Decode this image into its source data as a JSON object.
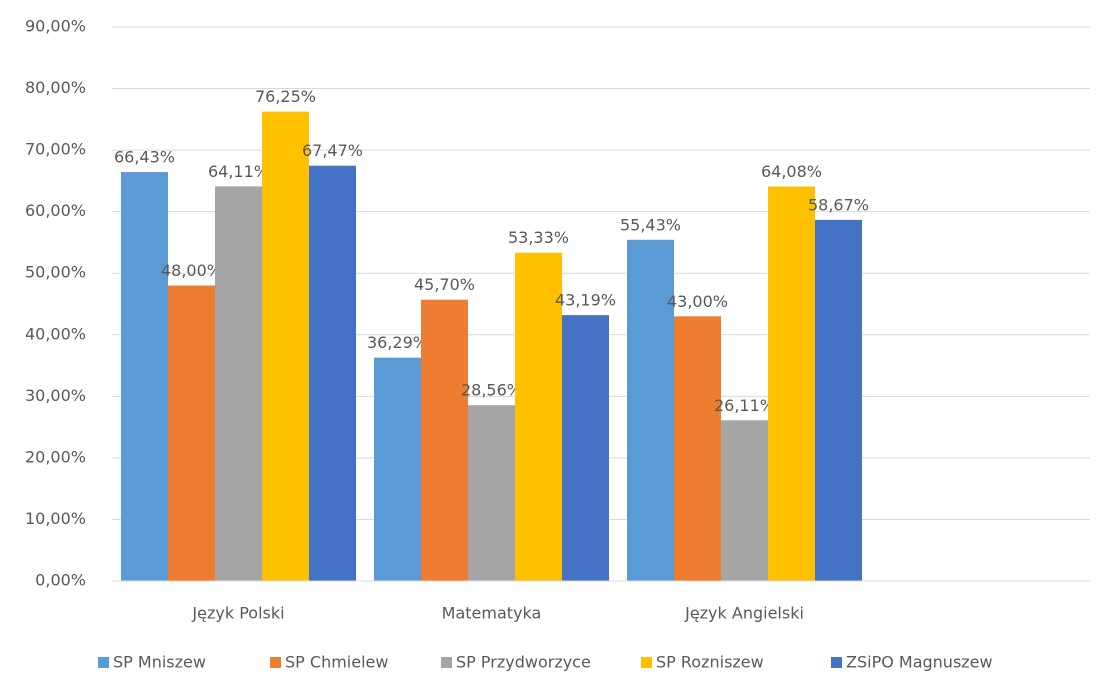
{
  "chart_data": {
    "type": "bar",
    "categories": [
      "Język Polski",
      "Matematyka",
      "Język Angielski"
    ],
    "series": [
      {
        "name": "SP Mniszew",
        "color": "#5b9bd5",
        "values": [
          66.43,
          36.29,
          55.43
        ],
        "value_labels": [
          "66,43%",
          "36,29%",
          "55,43%"
        ]
      },
      {
        "name": "SP Chmielew",
        "color": "#ed7d31",
        "values": [
          48.0,
          45.7,
          43.0
        ],
        "value_labels": [
          "48,00%",
          "45,70%",
          "43,00%"
        ]
      },
      {
        "name": "SP Przydworzyce",
        "color": "#a5a5a5",
        "values": [
          64.11,
          28.56,
          26.11
        ],
        "value_labels": [
          "64,11%",
          "28,56%",
          "26,11%"
        ]
      },
      {
        "name": "SP Rozniszew",
        "color": "#ffc000",
        "values": [
          76.25,
          53.33,
          64.08
        ],
        "value_labels": [
          "76,25%",
          "53,33%",
          "64,08%"
        ]
      },
      {
        "name": "ZSiPO Magnuszew",
        "color": "#4472c4",
        "values": [
          67.47,
          43.19,
          58.67
        ],
        "value_labels": [
          "67,47%",
          "43,19%",
          "58,67%"
        ]
      }
    ],
    "ylim": [
      0,
      90
    ],
    "yticks": [
      {
        "value": 0,
        "label": "0,00%"
      },
      {
        "value": 10,
        "label": "10,00%"
      },
      {
        "value": 20,
        "label": "20,00%"
      },
      {
        "value": 30,
        "label": "30,00%"
      },
      {
        "value": 40,
        "label": "40,00%"
      },
      {
        "value": 50,
        "label": "50,00%"
      },
      {
        "value": 60,
        "label": "60,00%"
      },
      {
        "value": 70,
        "label": "70,00%"
      },
      {
        "value": 80,
        "label": "80,00%"
      },
      {
        "value": 90,
        "label": "90,00%"
      }
    ],
    "grid": true,
    "legend": "bottom"
  }
}
